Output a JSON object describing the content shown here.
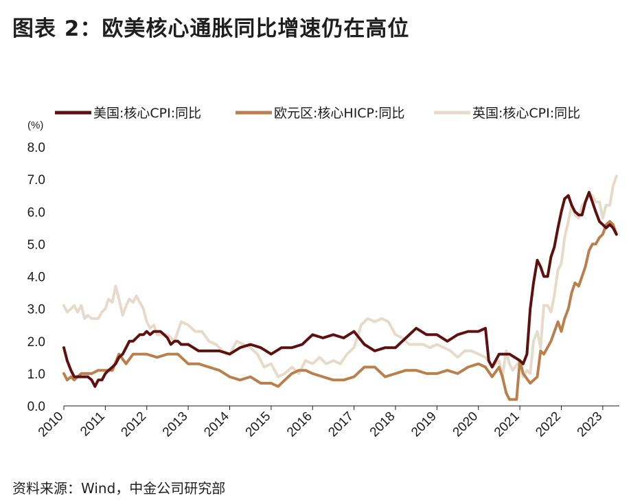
{
  "figure": {
    "title": "图表 2：欧美核心通胀同比增速仍在高位",
    "source": "资料来源：Wind，中金公司研究部"
  },
  "chart_data": {
    "type": "line",
    "unit_label": "(%)",
    "ylim": [
      0,
      8
    ],
    "yticks": [
      "0.0",
      "1.0",
      "2.0",
      "3.0",
      "4.0",
      "5.0",
      "6.0",
      "7.0",
      "8.0"
    ],
    "xlim": [
      2010,
      2023.4
    ],
    "xticks": [
      "2010",
      "2011",
      "2012",
      "2013",
      "2014",
      "2015",
      "2016",
      "2017",
      "2018",
      "2019",
      "2020",
      "2021",
      "2022",
      "2023"
    ],
    "grid": false,
    "legend_position": "top",
    "series": [
      {
        "name": "美国:核心CPI:同比",
        "color": "#5c1010",
        "x": [
          2010.0,
          2010.08,
          2010.17,
          2010.25,
          2010.33,
          2010.42,
          2010.5,
          2010.58,
          2010.67,
          2010.75,
          2010.83,
          2010.92,
          2011.0,
          2011.08,
          2011.17,
          2011.25,
          2011.33,
          2011.42,
          2011.5,
          2011.58,
          2011.67,
          2011.75,
          2011.83,
          2011.92,
          2012.0,
          2012.08,
          2012.17,
          2012.25,
          2012.33,
          2012.42,
          2012.5,
          2012.58,
          2012.67,
          2012.75,
          2012.83,
          2012.92,
          2013.0,
          2013.25,
          2013.5,
          2013.75,
          2014.0,
          2014.25,
          2014.5,
          2014.75,
          2015.0,
          2015.25,
          2015.5,
          2015.75,
          2016.0,
          2016.25,
          2016.5,
          2016.75,
          2017.0,
          2017.25,
          2017.5,
          2017.75,
          2018.0,
          2018.25,
          2018.5,
          2018.75,
          2019.0,
          2019.25,
          2019.5,
          2019.75,
          2020.0,
          2020.17,
          2020.25,
          2020.33,
          2020.5,
          2020.75,
          2021.0,
          2021.08,
          2021.17,
          2021.25,
          2021.33,
          2021.42,
          2021.5,
          2021.58,
          2021.67,
          2021.75,
          2021.83,
          2021.92,
          2022.0,
          2022.08,
          2022.17,
          2022.25,
          2022.33,
          2022.42,
          2022.5,
          2022.58,
          2022.67,
          2022.75,
          2022.83,
          2022.92,
          2023.0,
          2023.08,
          2023.17,
          2023.25,
          2023.33
        ],
        "y": [
          1.8,
          1.4,
          1.1,
          0.9,
          0.9,
          0.9,
          0.9,
          0.9,
          0.8,
          0.6,
          0.8,
          0.8,
          1.0,
          1.1,
          1.2,
          1.3,
          1.5,
          1.6,
          1.8,
          2.0,
          2.0,
          2.1,
          2.2,
          2.2,
          2.3,
          2.2,
          2.3,
          2.3,
          2.3,
          2.2,
          2.1,
          1.9,
          2.0,
          2.0,
          1.9,
          1.9,
          1.9,
          1.7,
          1.7,
          1.7,
          1.6,
          1.8,
          1.9,
          1.8,
          1.6,
          1.8,
          1.8,
          1.9,
          2.2,
          2.1,
          2.2,
          2.1,
          2.3,
          1.9,
          1.7,
          1.8,
          1.8,
          2.1,
          2.4,
          2.2,
          2.2,
          2.0,
          2.2,
          2.3,
          2.3,
          2.4,
          1.4,
          1.2,
          1.6,
          1.6,
          1.4,
          1.3,
          1.6,
          3.0,
          3.8,
          4.5,
          4.3,
          4.0,
          4.0,
          4.6,
          4.9,
          5.5,
          6.0,
          6.4,
          6.5,
          6.2,
          6.0,
          5.9,
          5.9,
          6.3,
          6.6,
          6.3,
          6.0,
          5.7,
          5.6,
          5.5,
          5.6,
          5.5,
          5.3
        ]
      },
      {
        "name": "欧元区:核心HICP:同比",
        "color": "#b9804d",
        "x": [
          2010.0,
          2010.08,
          2010.17,
          2010.25,
          2010.33,
          2010.42,
          2010.5,
          2010.67,
          2010.83,
          2011.0,
          2011.17,
          2011.33,
          2011.5,
          2011.67,
          2011.83,
          2012.0,
          2012.25,
          2012.5,
          2012.75,
          2013.0,
          2013.25,
          2013.5,
          2013.75,
          2014.0,
          2014.25,
          2014.5,
          2014.75,
          2015.0,
          2015.17,
          2015.33,
          2015.5,
          2015.67,
          2015.83,
          2016.0,
          2016.25,
          2016.5,
          2016.75,
          2017.0,
          2017.25,
          2017.5,
          2017.75,
          2018.0,
          2018.25,
          2018.5,
          2018.75,
          2019.0,
          2019.25,
          2019.5,
          2019.75,
          2020.0,
          2020.17,
          2020.33,
          2020.5,
          2020.58,
          2020.67,
          2020.75,
          2020.92,
          2021.0,
          2021.08,
          2021.25,
          2021.42,
          2021.5,
          2021.58,
          2021.75,
          2021.92,
          2022.0,
          2022.08,
          2022.17,
          2022.25,
          2022.33,
          2022.42,
          2022.5,
          2022.58,
          2022.67,
          2022.75,
          2022.83,
          2022.92,
          2023.0,
          2023.08,
          2023.17,
          2023.25,
          2023.33
        ],
        "y": [
          1.0,
          0.8,
          0.9,
          0.8,
          0.9,
          1.0,
          1.0,
          1.0,
          1.1,
          1.1,
          1.1,
          1.6,
          1.3,
          1.6,
          1.6,
          1.6,
          1.5,
          1.6,
          1.6,
          1.3,
          1.3,
          1.2,
          1.1,
          0.9,
          0.8,
          0.9,
          0.7,
          0.7,
          0.6,
          0.8,
          1.0,
          1.1,
          1.1,
          1.0,
          0.9,
          0.8,
          0.8,
          0.9,
          1.2,
          1.2,
          0.9,
          1.0,
          1.1,
          1.1,
          1.0,
          1.0,
          1.1,
          1.0,
          1.2,
          1.3,
          1.2,
          0.9,
          1.2,
          0.9,
          0.4,
          0.2,
          0.2,
          1.4,
          1.0,
          0.7,
          0.9,
          1.7,
          1.6,
          2.0,
          2.6,
          2.3,
          2.7,
          3.0,
          3.5,
          3.8,
          3.7,
          4.0,
          4.3,
          4.8,
          5.0,
          5.0,
          5.2,
          5.3,
          5.6,
          5.7,
          5.6,
          5.3
        ]
      },
      {
        "name": "英国:核心CPI:同比",
        "color": "#e6dacb",
        "x": [
          2010.0,
          2010.08,
          2010.17,
          2010.25,
          2010.33,
          2010.42,
          2010.5,
          2010.58,
          2010.67,
          2010.75,
          2010.83,
          2010.92,
          2011.0,
          2011.08,
          2011.17,
          2011.25,
          2011.33,
          2011.42,
          2011.5,
          2011.58,
          2011.67,
          2011.75,
          2011.83,
          2011.92,
          2012.0,
          2012.08,
          2012.17,
          2012.25,
          2012.33,
          2012.5,
          2012.67,
          2012.83,
          2013.0,
          2013.17,
          2013.33,
          2013.5,
          2013.67,
          2013.83,
          2014.0,
          2014.17,
          2014.33,
          2014.5,
          2014.67,
          2014.83,
          2015.0,
          2015.17,
          2015.33,
          2015.5,
          2015.67,
          2015.83,
          2016.0,
          2016.17,
          2016.33,
          2016.5,
          2016.67,
          2016.83,
          2017.0,
          2017.17,
          2017.33,
          2017.5,
          2017.67,
          2017.83,
          2018.0,
          2018.17,
          2018.33,
          2018.5,
          2018.67,
          2018.83,
          2019.0,
          2019.17,
          2019.33,
          2019.5,
          2019.67,
          2019.83,
          2020.0,
          2020.17,
          2020.33,
          2020.5,
          2020.58,
          2020.67,
          2020.75,
          2020.83,
          2021.0,
          2021.08,
          2021.17,
          2021.25,
          2021.33,
          2021.42,
          2021.5,
          2021.58,
          2021.67,
          2021.75,
          2021.83,
          2021.92,
          2022.0,
          2022.08,
          2022.17,
          2022.25,
          2022.33,
          2022.42,
          2022.5,
          2022.58,
          2022.67,
          2022.75,
          2022.83,
          2022.92,
          2023.0,
          2023.08,
          2023.17,
          2023.25,
          2023.33
        ],
        "y": [
          3.1,
          2.9,
          3.0,
          3.1,
          2.9,
          3.1,
          2.7,
          2.8,
          2.7,
          2.7,
          2.7,
          2.9,
          3.0,
          3.3,
          3.2,
          3.7,
          3.3,
          2.8,
          3.1,
          3.3,
          3.2,
          3.4,
          3.2,
          3.0,
          2.6,
          2.4,
          2.5,
          2.2,
          2.2,
          2.2,
          2.0,
          2.6,
          2.5,
          2.3,
          2.3,
          2.0,
          1.9,
          1.7,
          1.6,
          2.0,
          1.9,
          1.8,
          1.6,
          1.2,
          1.3,
          0.9,
          1.0,
          1.2,
          1.0,
          1.4,
          1.3,
          1.5,
          1.3,
          1.4,
          1.3,
          1.6,
          1.8,
          2.5,
          2.7,
          2.6,
          2.7,
          2.6,
          2.2,
          2.1,
          1.9,
          1.9,
          1.9,
          1.8,
          1.9,
          1.8,
          1.7,
          1.5,
          1.7,
          1.7,
          1.6,
          1.5,
          1.2,
          1.4,
          0.9,
          1.7,
          1.3,
          1.1,
          1.4,
          0.9,
          1.1,
          1.0,
          2.0,
          2.3,
          1.8,
          3.1,
          3.1,
          2.9,
          3.4,
          4.2,
          4.4,
          5.2,
          5.7,
          6.2,
          5.9,
          5.8,
          6.2,
          6.3,
          6.5,
          6.5,
          6.3,
          6.3,
          5.8,
          6.2,
          6.2,
          6.8,
          7.1
        ]
      }
    ]
  }
}
